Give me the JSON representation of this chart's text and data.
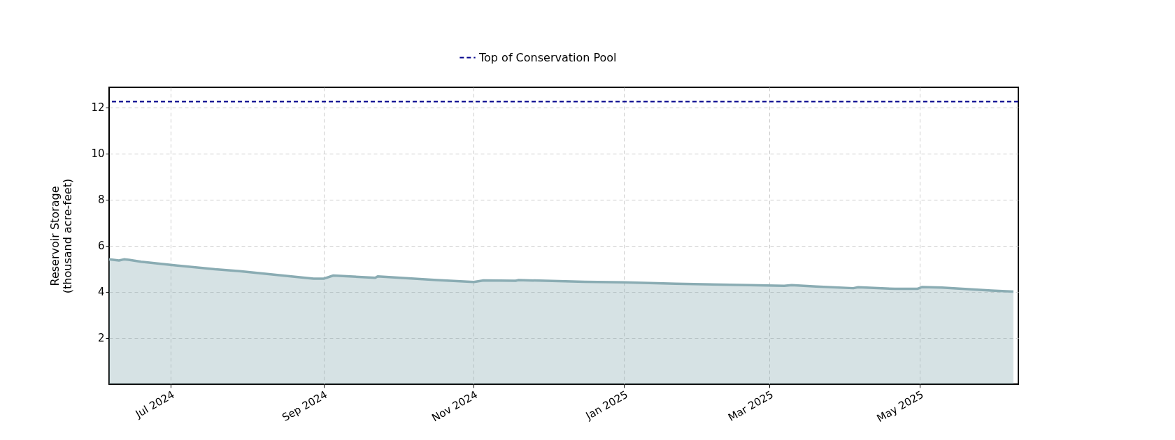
{
  "chart_data": {
    "type": "area",
    "ylabel": "Reservoir Storage\n(thousand acre-feet)",
    "x": [
      "2024-06-06",
      "2024-06-10",
      "2024-06-12",
      "2024-06-14",
      "2024-06-19",
      "2024-07-01",
      "2024-07-19",
      "2024-07-29",
      "2024-08-28",
      "2024-09-01",
      "2024-09-05",
      "2024-09-22",
      "2024-09-23",
      "2024-10-17",
      "2024-11-01",
      "2024-11-05",
      "2024-11-18",
      "2024-11-19",
      "2024-12-16",
      "2025-01-01",
      "2025-01-22",
      "2025-02-21",
      "2025-03-07",
      "2025-03-10",
      "2025-03-20",
      "2025-04-04",
      "2025-04-06",
      "2025-04-21",
      "2025-04-30",
      "2025-05-02",
      "2025-05-10",
      "2025-05-30",
      "2025-06-08"
    ],
    "series": [
      {
        "color": "#8aacb3",
        "values": [
          5.41,
          5.36,
          5.41,
          5.39,
          5.31,
          5.17,
          4.98,
          4.9,
          4.57,
          4.57,
          4.71,
          4.61,
          4.67,
          4.51,
          4.43,
          4.5,
          4.48,
          4.51,
          4.44,
          4.41,
          4.35,
          4.29,
          4.26,
          4.29,
          4.23,
          4.16,
          4.2,
          4.13,
          4.13,
          4.21,
          4.19,
          4.06,
          4.01
        ]
      }
    ],
    "xlim": [
      "2024-06-06",
      "2025-06-10"
    ],
    "xticks": [
      {
        "value": "2024-07-01",
        "label": "Jul 2024"
      },
      {
        "value": "2024-09-01",
        "label": "Sep 2024"
      },
      {
        "value": "2024-11-01",
        "label": "Nov 2024"
      },
      {
        "value": "2025-01-01",
        "label": "Jan 2025"
      },
      {
        "value": "2025-03-01",
        "label": "Mar 2025"
      },
      {
        "value": "2025-05-01",
        "label": "May 2025"
      }
    ],
    "ylim": [
      0,
      12.87
    ],
    "yticks": [
      2,
      4,
      6,
      8,
      10,
      12
    ],
    "ref_lines": [
      {
        "axis": "y",
        "value": 12.25,
        "label": "Top of Conservation Pool",
        "color": "#00008b",
        "line_style": "dashed"
      }
    ],
    "grid": true,
    "legend": "top"
  }
}
